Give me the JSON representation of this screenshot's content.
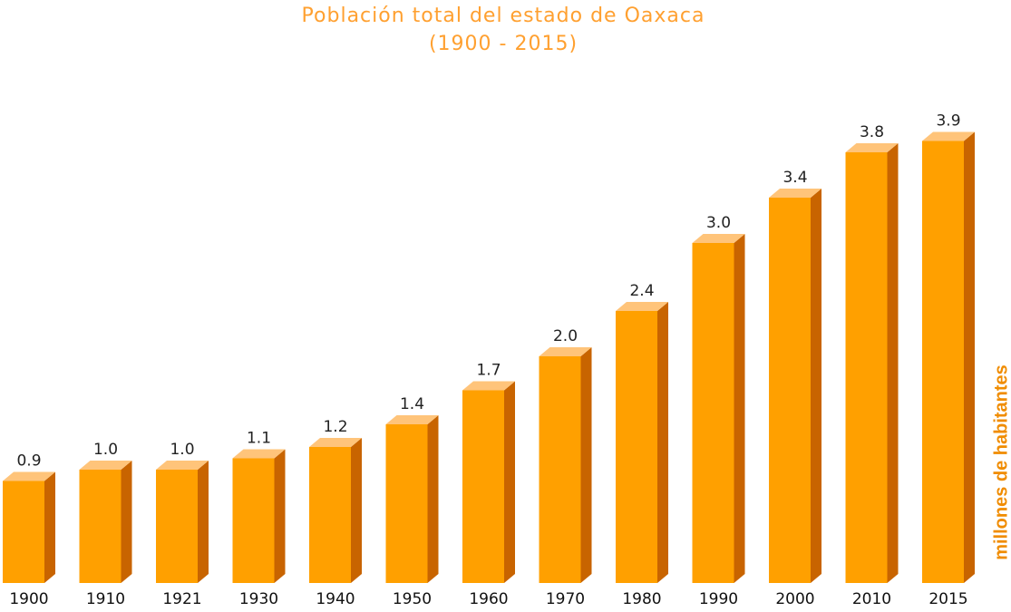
{
  "chart_data": {
    "type": "bar3d",
    "title": "Población total del estado de Oaxaca",
    "subtitle": "(1900 - 2015)",
    "y_label": "millones de habitantes",
    "categories": [
      "1900",
      "1910",
      "1921",
      "1930",
      "1940",
      "1950",
      "1960",
      "1970",
      "1980",
      "1990",
      "2000",
      "2010",
      "2015"
    ],
    "values": [
      0.9,
      1.0,
      1.0,
      1.1,
      1.2,
      1.4,
      1.7,
      2.0,
      2.4,
      3.0,
      3.4,
      3.8,
      3.9
    ],
    "value_labels": [
      "0.9",
      "1.0",
      "1.0",
      "1.1",
      "1.2",
      "1.4",
      "1.7",
      "2.0",
      "2.4",
      "3.0",
      "3.4",
      "3.8",
      "3.9"
    ],
    "color": "#ffa000",
    "side_color": "#c86400",
    "top_color": "#ffc47a",
    "ylim": [
      0,
      4
    ]
  }
}
